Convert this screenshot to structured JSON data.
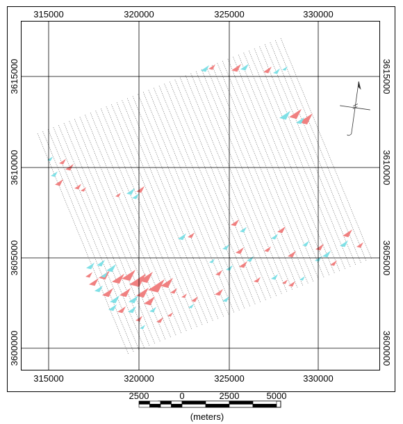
{
  "map": {
    "x_ticks": [
      "315000",
      "320000",
      "325000",
      "330000"
    ],
    "y_ticks": [
      "3615000",
      "3610000",
      "3605000",
      "3600000"
    ],
    "scale_bar": {
      "labels": [
        "2500",
        "0",
        "2500",
        "5000"
      ],
      "unit": "(meters)"
    },
    "colors": {
      "frame": "#000000",
      "grid": "#000000",
      "flight_lines": "#6d6d6d",
      "anomaly_positive": "#f08080",
      "anomaly_negative": "#7fe0e6"
    },
    "north_arrow": "north-arrow-icon"
  }
}
